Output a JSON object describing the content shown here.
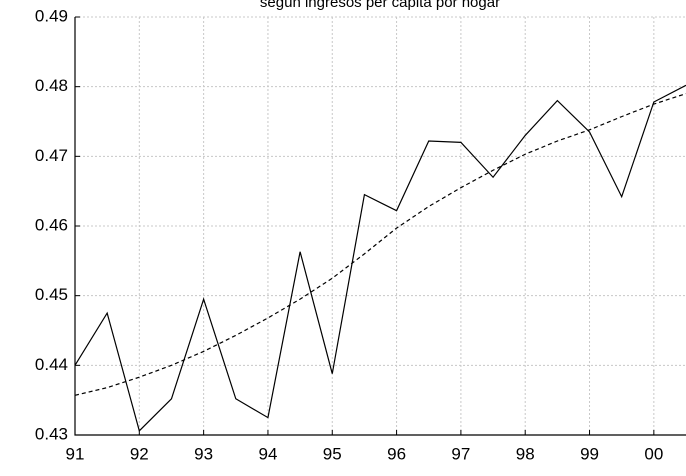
{
  "chart_data": {
    "type": "line",
    "title": "según ingresos per cápita por hogar",
    "x": [
      91,
      91.5,
      92,
      92.5,
      93,
      93.5,
      94,
      94.5,
      95,
      95.5,
      96,
      96.5,
      97,
      97.5,
      98,
      98.5,
      99,
      99.5,
      100,
      100.5
    ],
    "series": [
      {
        "color": "#000000",
        "dash": "solid",
        "values": [
          0.44,
          0.4475,
          0.4306,
          0.4352,
          0.4495,
          0.4352,
          0.4325,
          0.4563,
          0.4388,
          0.4645,
          0.4622,
          0.4722,
          0.472,
          0.467,
          0.473,
          0.478,
          0.4735,
          0.4642,
          0.4778,
          0.4802
        ]
      },
      {
        "color": "#000000",
        "dash": "dashed",
        "values": [
          0.4357,
          0.4368,
          0.4383,
          0.44,
          0.442,
          0.4443,
          0.4468,
          0.4495,
          0.4525,
          0.456,
          0.4597,
          0.4628,
          0.4655,
          0.468,
          0.4703,
          0.4722,
          0.4738,
          0.4757,
          0.4775,
          0.479
        ]
      }
    ],
    "xlim": [
      91,
      100.5
    ],
    "xticks": [
      91,
      92,
      93,
      94,
      95,
      96,
      97,
      98,
      99,
      {
        "value": 100,
        "label": "00"
      }
    ],
    "ylim": [
      0.43,
      0.49
    ],
    "yticks": [
      0.43,
      0.44,
      0.45,
      0.46,
      0.47,
      0.48,
      0.49
    ],
    "grid": true
  }
}
